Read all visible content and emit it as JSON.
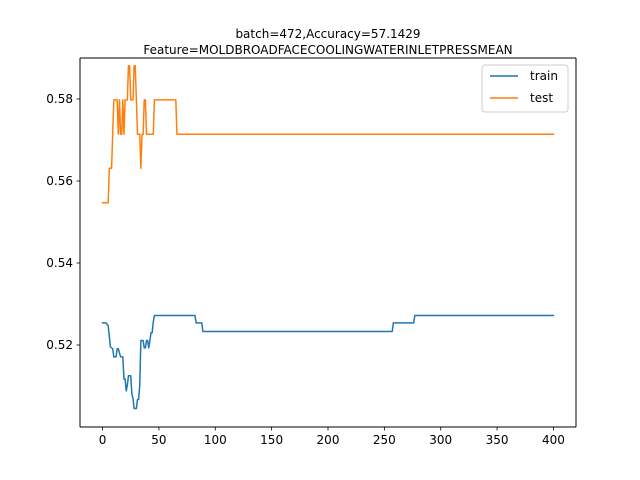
{
  "chart_data": {
    "type": "line",
    "title_line1": "batch=472,Accuracy=57.1429",
    "title_line2": "Feature=MOLDBROADFACECOOLINGWATERINLETPRESSMEAN",
    "xlabel": "",
    "ylabel": "",
    "xlim": [
      -20,
      420
    ],
    "ylim": [
      0.5,
      0.59
    ],
    "xticks": [
      0,
      50,
      100,
      150,
      200,
      250,
      300,
      350,
      400
    ],
    "yticks": [
      0.52,
      0.54,
      0.56,
      0.58
    ],
    "ytick_labels": [
      "0.52",
      "0.54",
      "0.56",
      "0.58"
    ],
    "grid": false,
    "legend_position": "top-right",
    "series": [
      {
        "name": "train",
        "color": "#1f77b4",
        "points": [
          [
            0,
            0.5254
          ],
          [
            3,
            0.5254
          ],
          [
            5,
            0.5247
          ],
          [
            7,
            0.5195
          ],
          [
            9,
            0.5191
          ],
          [
            10,
            0.5171
          ],
          [
            12,
            0.5171
          ],
          [
            13,
            0.5191
          ],
          [
            14,
            0.5191
          ],
          [
            16,
            0.5171
          ],
          [
            18,
            0.5171
          ],
          [
            19,
            0.5117
          ],
          [
            20,
            0.5117
          ],
          [
            21,
            0.5088
          ],
          [
            22,
            0.5102
          ],
          [
            23,
            0.5125
          ],
          [
            25,
            0.5125
          ],
          [
            26,
            0.5081
          ],
          [
            27,
            0.507
          ],
          [
            28,
            0.5045
          ],
          [
            30,
            0.5045
          ],
          [
            31,
            0.5067
          ],
          [
            32,
            0.5067
          ],
          [
            33,
            0.5102
          ],
          [
            34,
            0.5211
          ],
          [
            36,
            0.5211
          ],
          [
            37,
            0.5193
          ],
          [
            38,
            0.5193
          ],
          [
            39,
            0.5211
          ],
          [
            40,
            0.5211
          ],
          [
            41,
            0.5193
          ],
          [
            42,
            0.5211
          ],
          [
            43,
            0.523
          ],
          [
            44,
            0.523
          ],
          [
            45,
            0.5256
          ],
          [
            46,
            0.5272
          ],
          [
            82,
            0.5272
          ],
          [
            83,
            0.5254
          ],
          [
            88,
            0.5254
          ],
          [
            89,
            0.5233
          ],
          [
            257,
            0.5233
          ],
          [
            258,
            0.5254
          ],
          [
            276,
            0.5254
          ],
          [
            277,
            0.5272
          ],
          [
            400,
            0.5272
          ]
        ]
      },
      {
        "name": "test",
        "color": "#ff7f0e",
        "points": [
          [
            0,
            0.5547
          ],
          [
            5,
            0.5547
          ],
          [
            6,
            0.5631
          ],
          [
            8,
            0.5631
          ],
          [
            9,
            0.5714
          ],
          [
            10,
            0.5798
          ],
          [
            13,
            0.5798
          ],
          [
            14,
            0.5714
          ],
          [
            15,
            0.5798
          ],
          [
            16,
            0.5714
          ],
          [
            17,
            0.5714
          ],
          [
            18,
            0.5798
          ],
          [
            19,
            0.5714
          ],
          [
            20,
            0.5798
          ],
          [
            22,
            0.5798
          ],
          [
            23,
            0.5881
          ],
          [
            24,
            0.5881
          ],
          [
            25,
            0.5798
          ],
          [
            27,
            0.5798
          ],
          [
            28,
            0.5881
          ],
          [
            29,
            0.5881
          ],
          [
            30,
            0.5798
          ],
          [
            31,
            0.5714
          ],
          [
            32,
            0.5714
          ],
          [
            33,
            0.5714
          ],
          [
            34,
            0.5631
          ],
          [
            35,
            0.5714
          ],
          [
            36,
            0.5714
          ],
          [
            37,
            0.5798
          ],
          [
            38,
            0.5798
          ],
          [
            39,
            0.5714
          ],
          [
            45,
            0.5714
          ],
          [
            46,
            0.5798
          ],
          [
            65,
            0.5798
          ],
          [
            66,
            0.5714
          ],
          [
            400,
            0.5714
          ]
        ]
      }
    ]
  }
}
